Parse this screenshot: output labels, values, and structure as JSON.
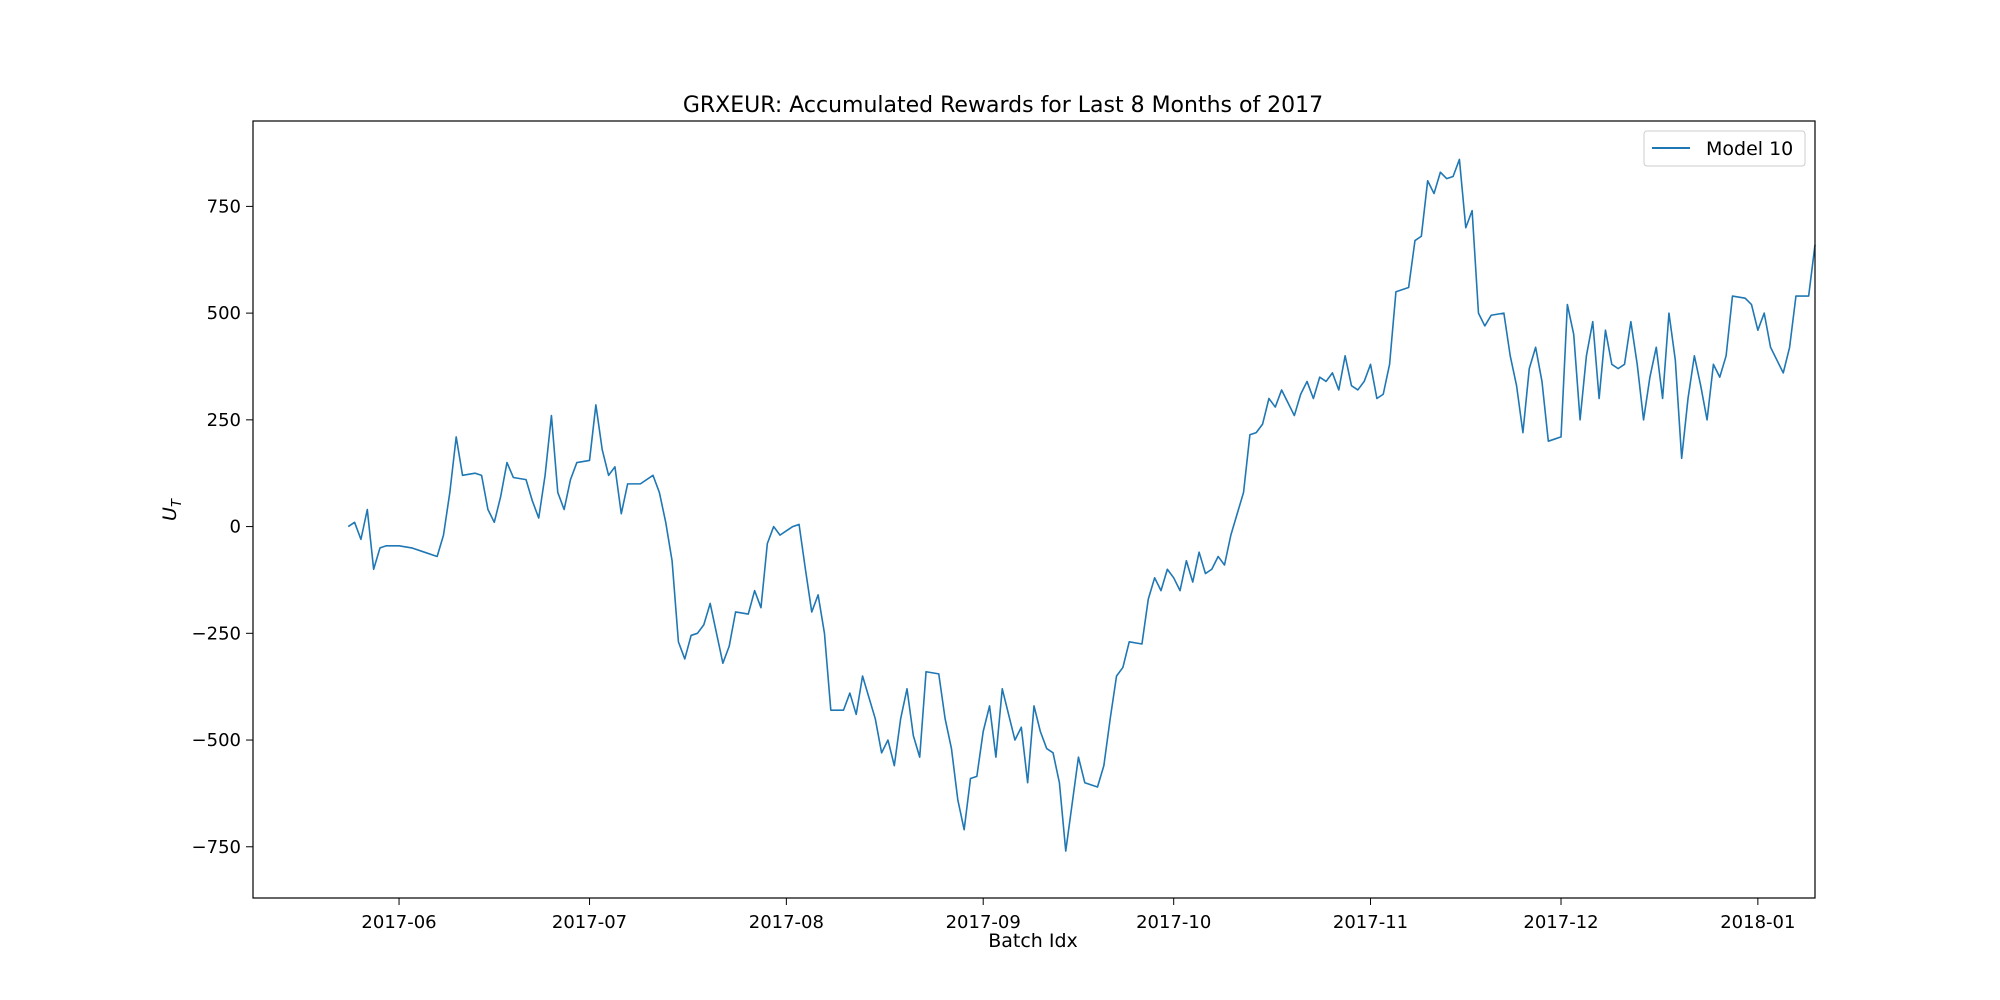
{
  "chart_data": {
    "type": "line",
    "title": "GRXEUR: Accumulated Rewards for Last 8 Months of 2017",
    "xlabel": "Batch Idx",
    "ylabel": "U",
    "ylabel_subscript": "T",
    "x_tick_labels": [
      "2017-06",
      "2017-07",
      "2017-08",
      "2017-09",
      "2017-10",
      "2017-11",
      "2017-12",
      "2018-01"
    ],
    "y_ticks": [
      -750,
      -500,
      -250,
      0,
      250,
      500,
      750
    ],
    "y_tick_labels": [
      "−750",
      "−500",
      "−250",
      "0",
      "250",
      "500",
      "750"
    ],
    "xlim": [
      "2017-05-09",
      "2018-01-10"
    ],
    "ylim": [
      -870,
      950
    ],
    "grid": false,
    "legend_position": "top-right",
    "series": [
      {
        "name": "Model 10",
        "color": "#1f77b4",
        "points": [
          [
            "2017-05-24",
            0
          ],
          [
            "2017-05-25",
            10
          ],
          [
            "2017-05-26",
            -30
          ],
          [
            "2017-05-27",
            40
          ],
          [
            "2017-05-28",
            -100
          ],
          [
            "2017-05-29",
            -50
          ],
          [
            "2017-05-30",
            -45
          ],
          [
            "2017-06-01",
            -45
          ],
          [
            "2017-06-03",
            -50
          ],
          [
            "2017-06-05",
            -60
          ],
          [
            "2017-06-07",
            -70
          ],
          [
            "2017-06-08",
            -20
          ],
          [
            "2017-06-09",
            80
          ],
          [
            "2017-06-10",
            210
          ],
          [
            "2017-06-11",
            120
          ],
          [
            "2017-06-13",
            125
          ],
          [
            "2017-06-14",
            120
          ],
          [
            "2017-06-15",
            40
          ],
          [
            "2017-06-16",
            10
          ],
          [
            "2017-06-17",
            70
          ],
          [
            "2017-06-18",
            150
          ],
          [
            "2017-06-19",
            115
          ],
          [
            "2017-06-21",
            110
          ],
          [
            "2017-06-22",
            60
          ],
          [
            "2017-06-23",
            20
          ],
          [
            "2017-06-24",
            120
          ],
          [
            "2017-06-25",
            260
          ],
          [
            "2017-06-26",
            80
          ],
          [
            "2017-06-27",
            40
          ],
          [
            "2017-06-28",
            110
          ],
          [
            "2017-06-29",
            150
          ],
          [
            "2017-07-01",
            155
          ],
          [
            "2017-07-02",
            285
          ],
          [
            "2017-07-03",
            180
          ],
          [
            "2017-07-04",
            120
          ],
          [
            "2017-07-05",
            140
          ],
          [
            "2017-07-06",
            30
          ],
          [
            "2017-07-07",
            100
          ],
          [
            "2017-07-09",
            100
          ],
          [
            "2017-07-11",
            120
          ],
          [
            "2017-07-12",
            80
          ],
          [
            "2017-07-13",
            10
          ],
          [
            "2017-07-14",
            -80
          ],
          [
            "2017-07-15",
            -270
          ],
          [
            "2017-07-16",
            -310
          ],
          [
            "2017-07-17",
            -255
          ],
          [
            "2017-07-18",
            -250
          ],
          [
            "2017-07-19",
            -230
          ],
          [
            "2017-07-20",
            -180
          ],
          [
            "2017-07-21",
            -250
          ],
          [
            "2017-07-22",
            -320
          ],
          [
            "2017-07-23",
            -280
          ],
          [
            "2017-07-24",
            -200
          ],
          [
            "2017-07-26",
            -205
          ],
          [
            "2017-07-27",
            -150
          ],
          [
            "2017-07-28",
            -190
          ],
          [
            "2017-07-29",
            -40
          ],
          [
            "2017-07-30",
            0
          ],
          [
            "2017-07-31",
            -20
          ],
          [
            "2017-08-01",
            -10
          ],
          [
            "2017-08-02",
            0
          ],
          [
            "2017-08-03",
            5
          ],
          [
            "2017-08-04",
            -100
          ],
          [
            "2017-08-05",
            -200
          ],
          [
            "2017-08-06",
            -160
          ],
          [
            "2017-08-07",
            -250
          ],
          [
            "2017-08-08",
            -430
          ],
          [
            "2017-08-10",
            -430
          ],
          [
            "2017-08-11",
            -390
          ],
          [
            "2017-08-12",
            -440
          ],
          [
            "2017-08-13",
            -350
          ],
          [
            "2017-08-14",
            -400
          ],
          [
            "2017-08-15",
            -450
          ],
          [
            "2017-08-16",
            -530
          ],
          [
            "2017-08-17",
            -500
          ],
          [
            "2017-08-18",
            -560
          ],
          [
            "2017-08-19",
            -450
          ],
          [
            "2017-08-20",
            -380
          ],
          [
            "2017-08-21",
            -490
          ],
          [
            "2017-08-22",
            -540
          ],
          [
            "2017-08-23",
            -340
          ],
          [
            "2017-08-25",
            -345
          ],
          [
            "2017-08-26",
            -450
          ],
          [
            "2017-08-27",
            -520
          ],
          [
            "2017-08-28",
            -640
          ],
          [
            "2017-08-29",
            -710
          ],
          [
            "2017-08-30",
            -590
          ],
          [
            "2017-08-31",
            -585
          ],
          [
            "2017-09-01",
            -480
          ],
          [
            "2017-09-02",
            -420
          ],
          [
            "2017-09-03",
            -540
          ],
          [
            "2017-09-04",
            -380
          ],
          [
            "2017-09-05",
            -440
          ],
          [
            "2017-09-06",
            -500
          ],
          [
            "2017-09-07",
            -470
          ],
          [
            "2017-09-08",
            -600
          ],
          [
            "2017-09-09",
            -420
          ],
          [
            "2017-09-10",
            -480
          ],
          [
            "2017-09-11",
            -520
          ],
          [
            "2017-09-12",
            -530
          ],
          [
            "2017-09-13",
            -600
          ],
          [
            "2017-09-14",
            -760
          ],
          [
            "2017-09-15",
            -650
          ],
          [
            "2017-09-16",
            -540
          ],
          [
            "2017-09-17",
            -600
          ],
          [
            "2017-09-18",
            -605
          ],
          [
            "2017-09-19",
            -610
          ],
          [
            "2017-09-20",
            -560
          ],
          [
            "2017-09-21",
            -450
          ],
          [
            "2017-09-22",
            -350
          ],
          [
            "2017-09-23",
            -330
          ],
          [
            "2017-09-24",
            -270
          ],
          [
            "2017-09-26",
            -275
          ],
          [
            "2017-09-27",
            -170
          ],
          [
            "2017-09-28",
            -120
          ],
          [
            "2017-09-29",
            -150
          ],
          [
            "2017-09-30",
            -100
          ],
          [
            "2017-10-01",
            -120
          ],
          [
            "2017-10-02",
            -150
          ],
          [
            "2017-10-03",
            -80
          ],
          [
            "2017-10-04",
            -130
          ],
          [
            "2017-10-05",
            -60
          ],
          [
            "2017-10-06",
            -110
          ],
          [
            "2017-10-07",
            -100
          ],
          [
            "2017-10-08",
            -70
          ],
          [
            "2017-10-09",
            -90
          ],
          [
            "2017-10-10",
            -20
          ],
          [
            "2017-10-11",
            30
          ],
          [
            "2017-10-12",
            80
          ],
          [
            "2017-10-13",
            215
          ],
          [
            "2017-10-14",
            220
          ],
          [
            "2017-10-15",
            240
          ],
          [
            "2017-10-16",
            300
          ],
          [
            "2017-10-17",
            280
          ],
          [
            "2017-10-18",
            320
          ],
          [
            "2017-10-19",
            290
          ],
          [
            "2017-10-20",
            260
          ],
          [
            "2017-10-21",
            310
          ],
          [
            "2017-10-22",
            340
          ],
          [
            "2017-10-23",
            300
          ],
          [
            "2017-10-24",
            350
          ],
          [
            "2017-10-25",
            340
          ],
          [
            "2017-10-26",
            360
          ],
          [
            "2017-10-27",
            320
          ],
          [
            "2017-10-28",
            400
          ],
          [
            "2017-10-29",
            330
          ],
          [
            "2017-10-30",
            320
          ],
          [
            "2017-10-31",
            340
          ],
          [
            "2017-11-01",
            380
          ],
          [
            "2017-11-02",
            300
          ],
          [
            "2017-11-03",
            310
          ],
          [
            "2017-11-04",
            380
          ],
          [
            "2017-11-05",
            550
          ],
          [
            "2017-11-06",
            555
          ],
          [
            "2017-11-07",
            560
          ],
          [
            "2017-11-08",
            670
          ],
          [
            "2017-11-09",
            680
          ],
          [
            "2017-11-10",
            810
          ],
          [
            "2017-11-11",
            780
          ],
          [
            "2017-11-12",
            830
          ],
          [
            "2017-11-13",
            815
          ],
          [
            "2017-11-14",
            820
          ],
          [
            "2017-11-15",
            860
          ],
          [
            "2017-11-16",
            700
          ],
          [
            "2017-11-17",
            740
          ],
          [
            "2017-11-18",
            500
          ],
          [
            "2017-11-19",
            470
          ],
          [
            "2017-11-20",
            495
          ],
          [
            "2017-11-22",
            500
          ],
          [
            "2017-11-23",
            400
          ],
          [
            "2017-11-24",
            330
          ],
          [
            "2017-11-25",
            220
          ],
          [
            "2017-11-26",
            370
          ],
          [
            "2017-11-27",
            420
          ],
          [
            "2017-11-28",
            340
          ],
          [
            "2017-11-29",
            200
          ],
          [
            "2017-11-30",
            205
          ],
          [
            "2017-12-01",
            210
          ],
          [
            "2017-12-02",
            520
          ],
          [
            "2017-12-03",
            450
          ],
          [
            "2017-12-04",
            250
          ],
          [
            "2017-12-05",
            400
          ],
          [
            "2017-12-06",
            480
          ],
          [
            "2017-12-07",
            300
          ],
          [
            "2017-12-08",
            460
          ],
          [
            "2017-12-09",
            380
          ],
          [
            "2017-12-10",
            370
          ],
          [
            "2017-12-11",
            380
          ],
          [
            "2017-12-12",
            480
          ],
          [
            "2017-12-13",
            380
          ],
          [
            "2017-12-14",
            250
          ],
          [
            "2017-12-15",
            350
          ],
          [
            "2017-12-16",
            420
          ],
          [
            "2017-12-17",
            300
          ],
          [
            "2017-12-18",
            500
          ],
          [
            "2017-12-19",
            390
          ],
          [
            "2017-12-20",
            160
          ],
          [
            "2017-12-21",
            300
          ],
          [
            "2017-12-22",
            400
          ],
          [
            "2017-12-23",
            330
          ],
          [
            "2017-12-24",
            250
          ],
          [
            "2017-12-25",
            380
          ],
          [
            "2017-12-26",
            350
          ],
          [
            "2017-12-27",
            400
          ],
          [
            "2017-12-28",
            540
          ],
          [
            "2017-12-30",
            535
          ],
          [
            "2017-12-31",
            520
          ],
          [
            "2018-01-01",
            460
          ],
          [
            "2018-01-02",
            500
          ],
          [
            "2018-01-03",
            420
          ],
          [
            "2018-01-04",
            390
          ],
          [
            "2018-01-05",
            360
          ],
          [
            "2018-01-06",
            420
          ],
          [
            "2018-01-07",
            540
          ],
          [
            "2018-01-09",
            540
          ],
          [
            "2018-01-10",
            660
          ]
        ]
      }
    ]
  }
}
